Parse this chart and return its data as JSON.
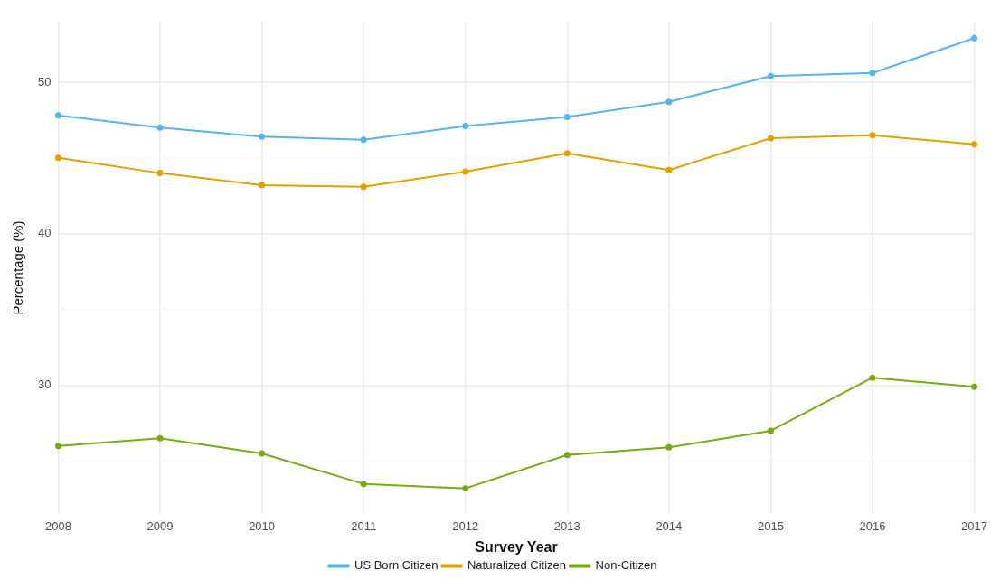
{
  "chart_data": {
    "type": "line",
    "xlabel": "Survey Year",
    "ylabel": "Percentage (%)",
    "categories": [
      "2008",
      "2009",
      "2010",
      "2011",
      "2012",
      "2013",
      "2014",
      "2015",
      "2016",
      "2017"
    ],
    "series": [
      {
        "name": "US Born Citizen",
        "color": "#56b4e9",
        "values": [
          47.8,
          47.0,
          46.4,
          46.2,
          47.1,
          47.7,
          48.7,
          50.4,
          50.6,
          52.9
        ]
      },
      {
        "name": "Naturalized Citizen",
        "color": "#e69f00",
        "values": [
          45.0,
          44.0,
          43.2,
          43.1,
          44.1,
          45.3,
          44.2,
          46.3,
          46.5,
          45.9
        ]
      },
      {
        "name": "Non-Citizen",
        "color": "#77ab13",
        "values": [
          26.0,
          26.5,
          25.5,
          23.5,
          23.2,
          25.4,
          25.9,
          27.0,
          30.5,
          29.9
        ]
      }
    ],
    "ylim": [
      21.5,
      54
    ],
    "yticks": [
      {
        "value": 25,
        "label": null
      },
      30,
      {
        "value": 35,
        "label": null
      },
      40,
      {
        "value": 45,
        "label": null
      },
      50
    ],
    "grid": true,
    "legend": "bottom",
    "marker": "circle",
    "line_style": "solid"
  }
}
